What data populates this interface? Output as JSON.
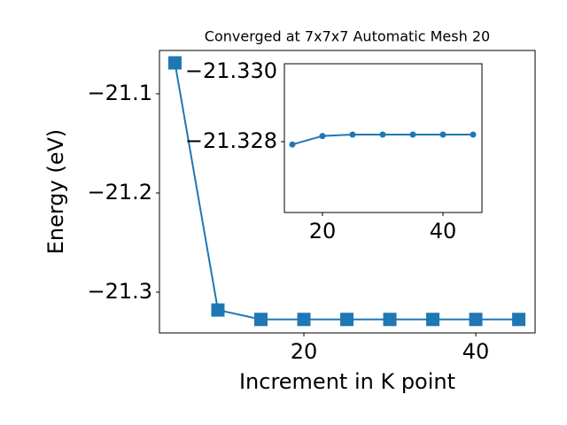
{
  "chart_data": [
    {
      "type": "line",
      "title": "Converged at 7x7x7 Automatic Mesh 20",
      "x_label": "Increment in K point",
      "y_label": "Energy (eV)",
      "x": [
        5,
        10,
        15,
        20,
        25,
        30,
        35,
        40,
        45
      ],
      "series": [
        {
          "color": "#1f77b4",
          "marker": "square",
          "values": [
            -21.0688,
            -21.318,
            -21.3275,
            -21.3275,
            -21.3275,
            -21.3275,
            -21.3275,
            -21.3275,
            -21.3275
          ]
        }
      ],
      "xlim": [
        3.2,
        46.9
      ],
      "xticks": [
        20,
        40
      ],
      "ylim": [
        -21.3411,
        -21.0563
      ],
      "yticks": [
        {
          "value": -21.1,
          "label": "−21.1"
        },
        {
          "value": -21.2,
          "label": "−21.2"
        },
        {
          "value": -21.3,
          "label": "−21.3"
        }
      ]
    },
    {
      "type": "line",
      "offset_text": "−21.330",
      "x": [
        15,
        20,
        25,
        30,
        35,
        40,
        45
      ],
      "series": [
        {
          "color": "#1f77b4",
          "marker": "circle",
          "values": [
            -21.32752,
            -21.32746,
            -21.32745,
            -21.32745,
            -21.32745,
            -21.32745,
            -21.32745
          ]
        }
      ],
      "xlim": [
        13.68,
        46.47
      ],
      "xticks": [
        20,
        40
      ],
      "ylim": [
        -21.328,
        -21.32695
      ],
      "yticks": [
        {
          "value": -21.3275,
          "label": "−21.328"
        }
      ]
    }
  ]
}
